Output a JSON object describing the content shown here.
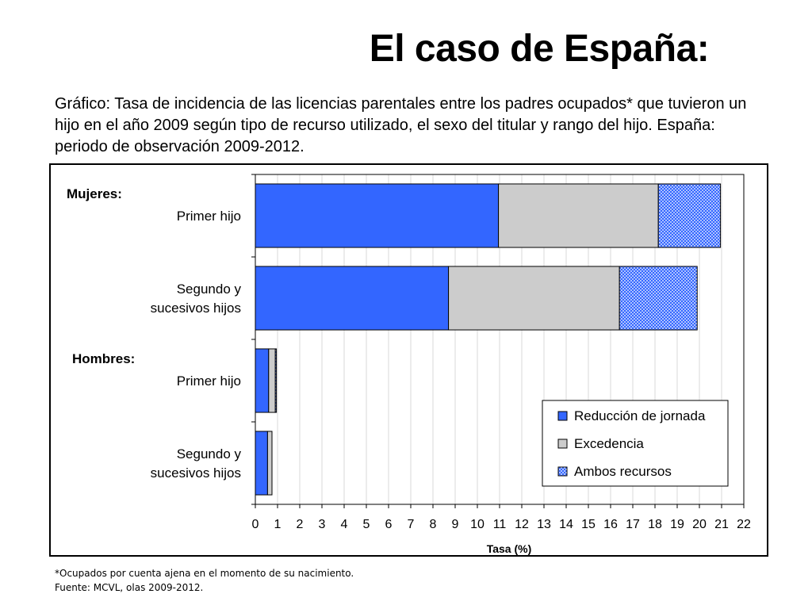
{
  "title": "El caso de España:",
  "subtitle": "Gráfico: Tasa de incidencia de las licencias parentales entre los padres ocupados* que tuvieron un hijo en el año 2009 según tipo de recurso utilizado, el sexo del titular y rango del hijo. España: periodo de observación 2009-2012.",
  "footnotes": {
    "note": "*Ocupados por cuenta ajena en el momento de su nacimiento.",
    "source": "Fuente: MCVL, olas 2009-2012."
  },
  "chart_data": {
    "type": "bar",
    "orientation": "horizontal",
    "stacked": true,
    "groups": [
      "Mujeres:",
      "Hombres:"
    ],
    "categories": [
      {
        "group": "Mujeres:",
        "label_lines": [
          "Primer hijo"
        ]
      },
      {
        "group": "Mujeres:",
        "label_lines": [
          "Segundo y",
          "sucesivos hijos"
        ]
      },
      {
        "group": "Hombres:",
        "label_lines": [
          "Primer hijo"
        ]
      },
      {
        "group": "Hombres:",
        "label_lines": [
          "Segundo y",
          "sucesivos hijos"
        ]
      }
    ],
    "series": [
      {
        "name": "Reducción de jornada",
        "color": "#3366ff",
        "pattern": "solid",
        "values": [
          10.95,
          8.7,
          0.6,
          0.55
        ]
      },
      {
        "name": "Excedencia",
        "color": "#cccccc",
        "pattern": "solid",
        "values": [
          7.2,
          7.7,
          0.3,
          0.2
        ]
      },
      {
        "name": "Ambos recursos",
        "color": "#3366ff",
        "pattern": "crosshatch",
        "values": [
          2.8,
          3.5,
          0.05,
          0.0
        ]
      }
    ],
    "xlabel": "Tasa (%)",
    "ylabel": "",
    "xlim": [
      0,
      22
    ],
    "xticks": [
      0,
      1,
      2,
      3,
      4,
      5,
      6,
      7,
      8,
      9,
      10,
      11,
      12,
      13,
      14,
      15,
      16,
      17,
      18,
      19,
      20,
      21,
      22
    ],
    "grid": "vertical",
    "legend": "bottom-right"
  }
}
